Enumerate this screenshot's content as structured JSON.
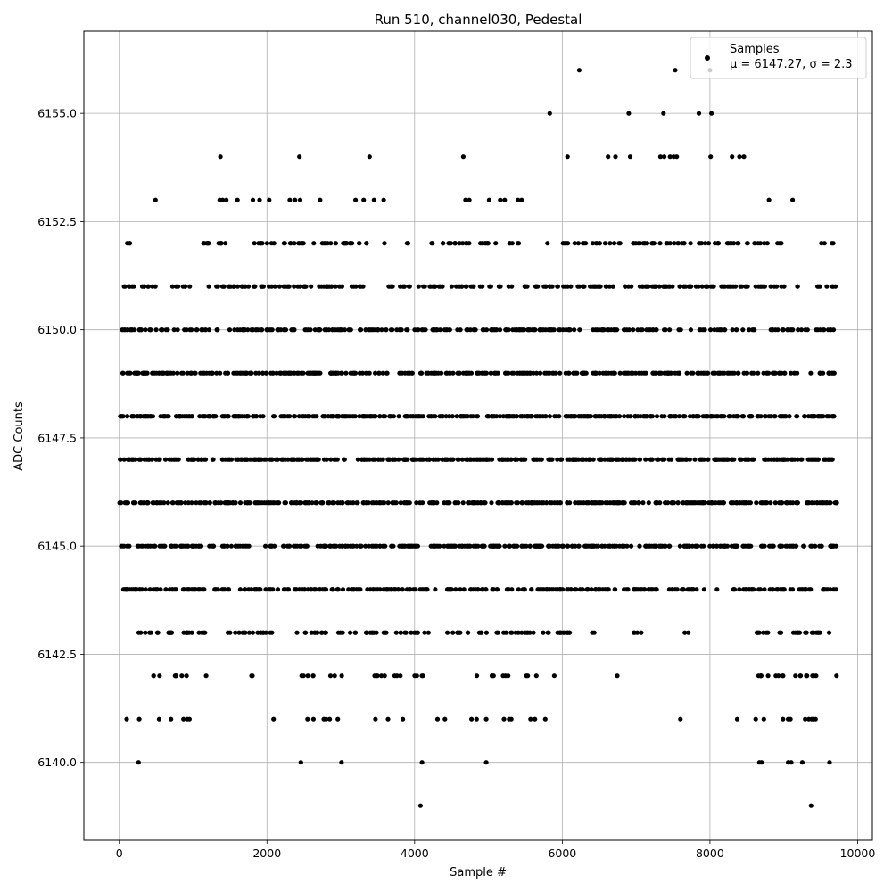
{
  "chart_data": {
    "type": "scatter",
    "title": "Run 510, channel030, Pedestal",
    "xlabel": "Sample #",
    "ylabel": "ADC Counts",
    "xlim": [
      -480,
      10200
    ],
    "ylim": [
      6138.2,
      6156.9
    ],
    "xticks": [
      0,
      2000,
      4000,
      6000,
      8000,
      10000
    ],
    "xtick_labels": [
      "0",
      "2000",
      "4000",
      "6000",
      "8000",
      "10000"
    ],
    "yticks": [
      6140.0,
      6142.5,
      6145.0,
      6147.5,
      6150.0,
      6152.5,
      6155.0
    ],
    "ytick_labels": [
      "6140.0",
      "6142.5",
      "6145.0",
      "6147.5",
      "6150.0",
      "6152.5",
      "6155.0"
    ],
    "grid": true,
    "legend_position": "upper-right",
    "marker_color": "#000000",
    "series": [
      {
        "name": "Samples",
        "stats_label": "μ = 6147.27, σ = 2.3",
        "mean": 6147.27,
        "sigma": 2.3,
        "n_samples": 9728,
        "rare_points": [
          {
            "x": 6230,
            "y": 6156
          },
          {
            "x": 7530,
            "y": 6156
          },
          {
            "x": 8000,
            "y": 6156
          },
          {
            "x": 5830,
            "y": 6155
          },
          {
            "x": 6900,
            "y": 6155
          },
          {
            "x": 7370,
            "y": 6155
          },
          {
            "x": 7850,
            "y": 6155
          },
          {
            "x": 8020,
            "y": 6155
          },
          {
            "x": 1370,
            "y": 6154
          },
          {
            "x": 2440,
            "y": 6154
          },
          {
            "x": 3390,
            "y": 6154
          },
          {
            "x": 4660,
            "y": 6154
          },
          {
            "x": 6070,
            "y": 6154
          },
          {
            "x": 6620,
            "y": 6154
          },
          {
            "x": 6720,
            "y": 6154
          },
          {
            "x": 6920,
            "y": 6154
          },
          {
            "x": 7330,
            "y": 6154
          },
          {
            "x": 7380,
            "y": 6154
          },
          {
            "x": 7460,
            "y": 6154
          },
          {
            "x": 7510,
            "y": 6154
          },
          {
            "x": 7550,
            "y": 6154
          },
          {
            "x": 8010,
            "y": 6154
          },
          {
            "x": 8300,
            "y": 6154
          },
          {
            "x": 8400,
            "y": 6154
          },
          {
            "x": 8460,
            "y": 6154
          },
          {
            "x": 4080,
            "y": 6139
          },
          {
            "x": 9370,
            "y": 6139
          },
          {
            "x": 260,
            "y": 6140
          },
          {
            "x": 2460,
            "y": 6140
          },
          {
            "x": 3010,
            "y": 6140
          },
          {
            "x": 4100,
            "y": 6140
          },
          {
            "x": 4970,
            "y": 6140
          },
          {
            "x": 8670,
            "y": 6140
          },
          {
            "x": 8700,
            "y": 6140
          },
          {
            "x": 9060,
            "y": 6140
          },
          {
            "x": 9100,
            "y": 6140
          },
          {
            "x": 9250,
            "y": 6140
          },
          {
            "x": 9620,
            "y": 6140
          },
          {
            "x": 490,
            "y": 6153
          },
          {
            "x": 1360,
            "y": 6153
          },
          {
            "x": 1400,
            "y": 6153
          },
          {
            "x": 1450,
            "y": 6153
          },
          {
            "x": 1600,
            "y": 6153
          },
          {
            "x": 1810,
            "y": 6153
          },
          {
            "x": 1900,
            "y": 6153
          },
          {
            "x": 2030,
            "y": 6153
          },
          {
            "x": 2310,
            "y": 6153
          },
          {
            "x": 2380,
            "y": 6153
          },
          {
            "x": 2450,
            "y": 6153
          },
          {
            "x": 2720,
            "y": 6153
          },
          {
            "x": 3200,
            "y": 6153
          },
          {
            "x": 3310,
            "y": 6153
          },
          {
            "x": 3450,
            "y": 6153
          },
          {
            "x": 3580,
            "y": 6153
          },
          {
            "x": 4690,
            "y": 6153
          },
          {
            "x": 4740,
            "y": 6153
          },
          {
            "x": 5010,
            "y": 6153
          },
          {
            "x": 5160,
            "y": 6153
          },
          {
            "x": 5220,
            "y": 6153
          },
          {
            "x": 5400,
            "y": 6153
          },
          {
            "x": 5450,
            "y": 6153
          },
          {
            "x": 8800,
            "y": 6153
          },
          {
            "x": 9120,
            "y": 6153
          },
          {
            "x": 100,
            "y": 6141
          },
          {
            "x": 270,
            "y": 6141
          },
          {
            "x": 540,
            "y": 6141
          },
          {
            "x": 700,
            "y": 6141
          },
          {
            "x": 870,
            "y": 6141
          },
          {
            "x": 920,
            "y": 6141
          },
          {
            "x": 950,
            "y": 6141
          },
          {
            "x": 2090,
            "y": 6141
          },
          {
            "x": 2550,
            "y": 6141
          },
          {
            "x": 2630,
            "y": 6141
          },
          {
            "x": 2770,
            "y": 6141
          },
          {
            "x": 2800,
            "y": 6141
          },
          {
            "x": 2850,
            "y": 6141
          },
          {
            "x": 2960,
            "y": 6141
          },
          {
            "x": 3470,
            "y": 6141
          },
          {
            "x": 3640,
            "y": 6141
          },
          {
            "x": 3840,
            "y": 6141
          },
          {
            "x": 4310,
            "y": 6141
          },
          {
            "x": 4410,
            "y": 6141
          },
          {
            "x": 4770,
            "y": 6141
          },
          {
            "x": 4840,
            "y": 6141
          },
          {
            "x": 4970,
            "y": 6141
          },
          {
            "x": 5210,
            "y": 6141
          },
          {
            "x": 5280,
            "y": 6141
          },
          {
            "x": 5310,
            "y": 6141
          },
          {
            "x": 5570,
            "y": 6141
          },
          {
            "x": 5630,
            "y": 6141
          },
          {
            "x": 5770,
            "y": 6141
          },
          {
            "x": 7600,
            "y": 6141
          },
          {
            "x": 8370,
            "y": 6141
          },
          {
            "x": 8620,
            "y": 6141
          },
          {
            "x": 8730,
            "y": 6141
          },
          {
            "x": 8990,
            "y": 6141
          },
          {
            "x": 9060,
            "y": 6141
          },
          {
            "x": 9090,
            "y": 6141
          },
          {
            "x": 9290,
            "y": 6141
          },
          {
            "x": 9340,
            "y": 6141
          },
          {
            "x": 9380,
            "y": 6141
          },
          {
            "x": 9400,
            "y": 6141
          },
          {
            "x": 9430,
            "y": 6141
          }
        ],
        "bands": [
          {
            "y": 6152,
            "x_ranges": [
              [
                50,
                150
              ],
              [
                1120,
                1650
              ],
              [
                1790,
                2520
              ],
              [
                2600,
                3420
              ],
              [
                3590,
                3600
              ],
              [
                3870,
                3930
              ],
              [
                4150,
                4760
              ],
              [
                4830,
                5140
              ],
              [
                5230,
                5430
              ],
              [
                5760,
                5810
              ],
              [
                5990,
                6650
              ],
              [
                6700,
                7780
              ],
              [
                7820,
                8440
              ],
              [
                8500,
                8790
              ],
              [
                8870,
                8980
              ],
              [
                9500,
                9590
              ],
              [
                9630,
                9710
              ]
            ],
            "density": 0.5
          },
          {
            "y": 6151,
            "x_ranges": [
              [
                0,
                200
              ],
              [
                260,
                520
              ],
              [
                720,
                960
              ],
              [
                1120,
                3360
              ],
              [
                3560,
                9060
              ],
              [
                9100,
                9190
              ],
              [
                9450,
                9710
              ]
            ],
            "density": 0.55
          },
          {
            "y": 6150,
            "x_ranges": [
              [
                20,
                8640
              ],
              [
                8820,
                9330
              ],
              [
                9420,
                9710
              ]
            ],
            "density": 0.65
          },
          {
            "y": 6149,
            "x_ranges": [
              [
                30,
                9720
              ]
            ],
            "density": 0.75
          },
          {
            "y": 6148,
            "x_ranges": [
              [
                0,
                9720
              ]
            ],
            "density": 0.85
          },
          {
            "y": 6147,
            "x_ranges": [
              [
                0,
                9720
              ]
            ],
            "density": 0.9
          },
          {
            "y": 6146,
            "x_ranges": [
              [
                0,
                9720
              ]
            ],
            "density": 0.85
          },
          {
            "y": 6145,
            "x_ranges": [
              [
                0,
                9720
              ]
            ],
            "density": 0.8
          },
          {
            "y": 6144,
            "x_ranges": [
              [
                0,
                1520
              ],
              [
                1630,
                4280
              ],
              [
                4330,
                7300
              ],
              [
                7440,
                7940
              ],
              [
                8080,
                8120
              ],
              [
                8300,
                9720
              ]
            ],
            "density": 0.7
          },
          {
            "y": 6143,
            "x_ranges": [
              [
                220,
                1210
              ],
              [
                1410,
                2080
              ],
              [
                2290,
                2860
              ],
              [
                2960,
                3620
              ],
              [
                3730,
                4200
              ],
              [
                4380,
                4730
              ],
              [
                4870,
                6120
              ],
              [
                6370,
                6440
              ],
              [
                6950,
                7090
              ],
              [
                7650,
                7720
              ],
              [
                8590,
                9500
              ],
              [
                9570,
                9620
              ]
            ],
            "density": 0.5
          },
          {
            "y": 6142,
            "x_ranges": [
              [
                460,
                570
              ],
              [
                740,
                960
              ],
              [
                1160,
                1180
              ],
              [
                1790,
                1860
              ],
              [
                2470,
                2680
              ],
              [
                2840,
                2920
              ],
              [
                3000,
                3020
              ],
              [
                3420,
                3620
              ],
              [
                3710,
                3820
              ],
              [
                3960,
                4130
              ],
              [
                4830,
                4850
              ],
              [
                5020,
                5270
              ],
              [
                5510,
                5570
              ],
              [
                5620,
                5650
              ],
              [
                5880,
                5900
              ],
              [
                6740,
                6790
              ],
              [
                8650,
                9010
              ],
              [
                9150,
                9480
              ],
              [
                9690,
                9720
              ]
            ],
            "density": 0.5
          }
        ]
      }
    ]
  }
}
